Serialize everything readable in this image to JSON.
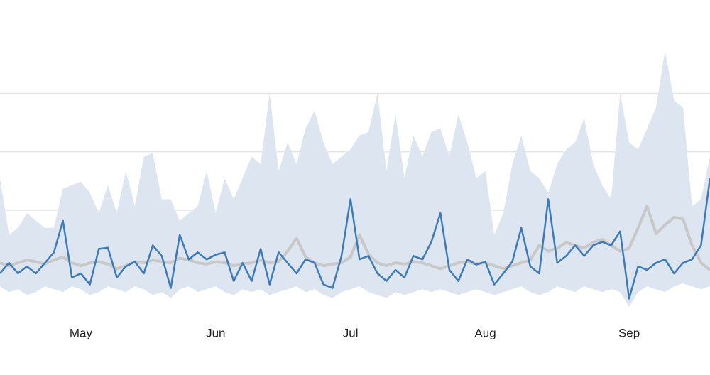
{
  "chart_data": {
    "type": "line",
    "categories": [
      null,
      null,
      null,
      null,
      null,
      null,
      null,
      null,
      null,
      "May",
      null,
      null,
      null,
      null,
      null,
      null,
      null,
      null,
      null,
      null,
      null,
      null,
      null,
      null,
      "Jun",
      null,
      null,
      null,
      null,
      null,
      null,
      null,
      null,
      null,
      null,
      null,
      null,
      null,
      null,
      "Jul",
      null,
      null,
      null,
      null,
      null,
      null,
      null,
      null,
      null,
      null,
      null,
      null,
      null,
      null,
      "Aug",
      null,
      null,
      null,
      null,
      null,
      null,
      null,
      null,
      null,
      null,
      null,
      null,
      null,
      null,
      null,
      "Sep",
      null,
      null,
      null,
      null,
      null,
      null,
      null,
      null,
      null
    ],
    "band": {
      "color": "#dde5f0",
      "low": [
        0.7,
        0.6,
        0.65,
        0.55,
        0.6,
        0.7,
        0.65,
        0.6,
        0.7,
        0.65,
        0.55,
        0.6,
        0.7,
        0.65,
        0.6,
        0.7,
        0.65,
        0.55,
        0.6,
        0.5,
        0.65,
        0.7,
        0.6,
        0.65,
        0.7,
        0.6,
        0.55,
        0.65,
        0.6,
        0.65,
        0.55,
        0.6,
        0.65,
        0.7,
        0.6,
        0.65,
        0.55,
        0.5,
        0.6,
        0.65,
        0.7,
        0.6,
        0.55,
        0.5,
        0.6,
        0.55,
        0.6,
        0.65,
        0.6,
        0.65,
        0.6,
        0.55,
        0.6,
        0.65,
        0.6,
        0.55,
        0.6,
        0.65,
        0.7,
        0.6,
        0.55,
        0.6,
        0.7,
        0.65,
        0.6,
        0.7,
        0.65,
        0.6,
        0.65,
        0.6,
        0.35,
        0.6,
        0.7,
        0.65,
        0.6,
        0.7,
        0.75,
        0.7,
        0.65,
        0.7
      ],
      "high": [
        2.55,
        1.58,
        1.7,
        1.95,
        1.82,
        1.7,
        1.7,
        2.37,
        2.43,
        2.49,
        2.3,
        1.95,
        2.43,
        1.95,
        2.67,
        2.07,
        2.92,
        2.98,
        2.19,
        2.19,
        1.82,
        1.95,
        2.07,
        2.67,
        1.95,
        2.55,
        2.19,
        2.55,
        2.92,
        2.79,
        4.0,
        2.67,
        3.16,
        2.79,
        3.4,
        3.7,
        3.16,
        2.79,
        2.92,
        3.04,
        3.28,
        3.34,
        4.0,
        2.67,
        3.64,
        2.55,
        3.28,
        2.92,
        3.34,
        3.4,
        2.92,
        3.64,
        3.16,
        2.55,
        2.67,
        1.58,
        1.95,
        2.79,
        3.28,
        2.67,
        2.55,
        2.3,
        2.79,
        3.04,
        3.16,
        3.58,
        2.79,
        2.43,
        2.19,
        4.0,
        3.16,
        3.04,
        3.4,
        3.76,
        4.73,
        3.88,
        3.76,
        2.07,
        2.19,
        2.92
      ]
    },
    "series": [
      {
        "color": "#c8c8c8",
        "values": [
          1.1,
          1.05,
          1.1,
          1.15,
          1.12,
          1.08,
          1.15,
          1.2,
          1.1,
          1.05,
          1.1,
          1.12,
          1.08,
          1.0,
          1.05,
          1.12,
          1.1,
          1.15,
          1.12,
          1.1,
          1.18,
          1.15,
          1.1,
          1.08,
          1.12,
          1.1,
          1.05,
          1.08,
          1.1,
          1.15,
          1.1,
          1.12,
          1.3,
          1.52,
          1.2,
          1.1,
          1.05,
          1.08,
          1.1,
          1.2,
          1.58,
          1.25,
          1.1,
          1.05,
          1.1,
          1.08,
          1.12,
          1.1,
          1.05,
          1.0,
          1.05,
          1.1,
          1.12,
          1.08,
          1.1,
          1.05,
          1.0,
          1.05,
          1.1,
          1.15,
          1.4,
          1.3,
          1.35,
          1.45,
          1.4,
          1.35,
          1.45,
          1.5,
          1.4,
          1.3,
          1.35,
          1.7,
          2.07,
          1.6,
          1.75,
          1.88,
          1.85,
          1.4,
          1.1,
          0.98
        ]
      },
      {
        "color": "#3d7ab8",
        "values": [
          0.92,
          1.1,
          0.92,
          1.04,
          0.92,
          1.1,
          1.28,
          1.82,
          0.85,
          0.92,
          0.73,
          1.34,
          1.36,
          0.85,
          1.04,
          1.12,
          0.92,
          1.4,
          1.22,
          0.67,
          1.58,
          1.16,
          1.28,
          1.16,
          1.24,
          1.28,
          0.79,
          1.1,
          0.79,
          1.34,
          0.73,
          1.28,
          1.1,
          0.92,
          1.16,
          1.1,
          0.73,
          0.67,
          1.22,
          2.19,
          1.16,
          1.22,
          0.92,
          0.79,
          0.98,
          0.85,
          1.22,
          1.16,
          1.46,
          1.95,
          0.98,
          0.79,
          1.16,
          1.07,
          1.12,
          0.73,
          0.92,
          1.12,
          1.7,
          1.04,
          0.92,
          2.19,
          1.1,
          1.22,
          1.4,
          1.22,
          1.4,
          1.46,
          1.4,
          1.64,
          0.49,
          1.04,
          0.98,
          1.1,
          1.16,
          0.92,
          1.1,
          1.16,
          1.4,
          2.55
        ]
      }
    ],
    "ylim": [
      0.3,
      5.5
    ],
    "yticks": [
      1,
      2,
      3,
      4
    ],
    "grid": true
  }
}
